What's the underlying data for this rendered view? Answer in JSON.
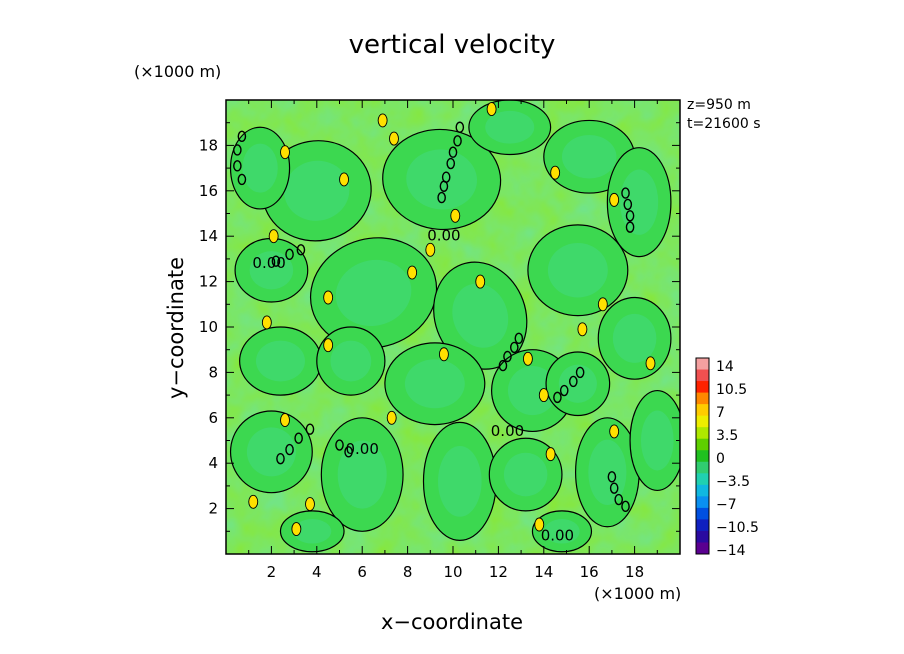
{
  "chart_data": {
    "type": "heatmap",
    "title": "vertical velocity",
    "xlabel": "x−coordinate",
    "ylabel": "y−coordinate",
    "x_unit": "(×1000 m)",
    "y_unit": "(×1000 m)",
    "annotations": [
      "z=950 m",
      "t=21600 s"
    ],
    "xlim": [
      0,
      20
    ],
    "ylim": [
      0,
      20
    ],
    "x_ticks": [
      2,
      4,
      6,
      8,
      10,
      12,
      14,
      16,
      18
    ],
    "y_ticks": [
      2,
      4,
      6,
      8,
      10,
      12,
      14,
      16,
      18
    ],
    "contour_label": "0.00",
    "contour_levels": [
      0,
      3.5
    ],
    "colorbar": {
      "ticks": [
        "14",
        "10.5",
        "7",
        "3.5",
        "0",
        "−3.5",
        "−7",
        "−10.5",
        "−14"
      ],
      "colors": [
        "#f4a0a0",
        "#f05050",
        "#ff2200",
        "#ff8800",
        "#ffcc00",
        "#eeee00",
        "#aee800",
        "#5ed000",
        "#20c020",
        "#30cc70",
        "#20d0b0",
        "#10b8e0",
        "#0a90f0",
        "#0050e0",
        "#1020c0",
        "#2a0aa0",
        "#5a0090"
      ]
    },
    "background_color": "#3cd850",
    "updraft_color": "#8ae830",
    "peak_color": "#ffe000",
    "cells": [
      {
        "x": 4,
        "y": 16,
        "rx": 2.4,
        "ry": 2.2,
        "a": 10
      },
      {
        "x": 9.5,
        "y": 16.5,
        "rx": 2.6,
        "ry": 2.2,
        "a": -5
      },
      {
        "x": 16,
        "y": 17.5,
        "rx": 2,
        "ry": 1.6,
        "a": 0
      },
      {
        "x": 1.5,
        "y": 17,
        "rx": 1.3,
        "ry": 1.8,
        "a": 0
      },
      {
        "x": 2,
        "y": 12.5,
        "rx": 1.6,
        "ry": 1.4,
        "a": 0
      },
      {
        "x": 6.5,
        "y": 11.5,
        "rx": 2.8,
        "ry": 2.4,
        "a": 15
      },
      {
        "x": 11.2,
        "y": 10.5,
        "rx": 2,
        "ry": 2.4,
        "a": 20
      },
      {
        "x": 15.5,
        "y": 12.5,
        "rx": 2.2,
        "ry": 2,
        "a": 0
      },
      {
        "x": 18.2,
        "y": 15.5,
        "rx": 1.4,
        "ry": 2.4,
        "a": 0
      },
      {
        "x": 2.4,
        "y": 8.5,
        "rx": 1.8,
        "ry": 1.5,
        "a": 0
      },
      {
        "x": 5.5,
        "y": 8.5,
        "rx": 1.5,
        "ry": 1.5,
        "a": 0
      },
      {
        "x": 9.2,
        "y": 7.5,
        "rx": 2.2,
        "ry": 1.8,
        "a": 0
      },
      {
        "x": 13.5,
        "y": 7.2,
        "rx": 1.8,
        "ry": 1.8,
        "a": 0
      },
      {
        "x": 18,
        "y": 9.5,
        "rx": 1.6,
        "ry": 1.8,
        "a": 0
      },
      {
        "x": 2,
        "y": 4.5,
        "rx": 1.8,
        "ry": 1.8,
        "a": 0
      },
      {
        "x": 6,
        "y": 3.5,
        "rx": 1.8,
        "ry": 2.5,
        "a": 0
      },
      {
        "x": 10.3,
        "y": 3.2,
        "rx": 1.6,
        "ry": 2.6,
        "a": 0
      },
      {
        "x": 13.2,
        "y": 3.5,
        "rx": 1.6,
        "ry": 1.6,
        "a": 0
      },
      {
        "x": 16.8,
        "y": 3.6,
        "rx": 1.4,
        "ry": 2.4,
        "a": 0
      },
      {
        "x": 15.5,
        "y": 7.5,
        "rx": 1.4,
        "ry": 1.4,
        "a": 0
      },
      {
        "x": 19,
        "y": 5,
        "rx": 1.2,
        "ry": 2.2,
        "a": 0
      },
      {
        "x": 12.5,
        "y": 18.8,
        "rx": 1.8,
        "ry": 1.2,
        "a": 0
      },
      {
        "x": 3.8,
        "y": 1,
        "rx": 1.4,
        "ry": 0.9,
        "a": 0
      },
      {
        "x": 14.8,
        "y": 1,
        "rx": 1.3,
        "ry": 0.9,
        "a": 0
      }
    ],
    "peaks": [
      [
        1.2,
        2.3
      ],
      [
        3.1,
        1.1
      ],
      [
        7.3,
        6.0
      ],
      [
        9.6,
        8.8
      ],
      [
        4.5,
        9.2
      ],
      [
        4.5,
        11.3
      ],
      [
        2.6,
        17.7
      ],
      [
        6.9,
        19.1
      ],
      [
        7.4,
        18.3
      ],
      [
        11.7,
        19.6
      ],
      [
        14.5,
        16.8
      ],
      [
        17.1,
        15.6
      ],
      [
        15.7,
        9.9
      ],
      [
        14.0,
        7.0
      ],
      [
        13.3,
        8.6
      ],
      [
        10.1,
        14.9
      ],
      [
        8.2,
        12.4
      ],
      [
        2.6,
        5.9
      ],
      [
        3.7,
        2.2
      ],
      [
        14.3,
        4.4
      ],
      [
        13.8,
        1.3
      ],
      [
        17.1,
        5.4
      ],
      [
        1.8,
        10.2
      ],
      [
        18.7,
        8.4
      ],
      [
        11.2,
        12.0
      ],
      [
        9.0,
        13.4
      ],
      [
        5.2,
        16.5
      ],
      [
        2.1,
        14.0
      ],
      [
        16.6,
        11.0
      ]
    ],
    "contour_label_positions": [
      [
        9.6,
        13.8
      ],
      [
        1.9,
        12.6
      ],
      [
        6.0,
        4.4
      ],
      [
        12.4,
        5.2
      ],
      [
        14.6,
        0.6
      ]
    ],
    "dash_chains": [
      [
        [
          10.3,
          18.8
        ],
        [
          10.2,
          18.2
        ],
        [
          10.0,
          17.7
        ],
        [
          9.9,
          17.2
        ],
        [
          9.7,
          16.6
        ],
        [
          9.6,
          16.2
        ],
        [
          9.5,
          15.7
        ]
      ],
      [
        [
          2.2,
          12.9
        ],
        [
          2.8,
          13.2
        ],
        [
          3.3,
          13.4
        ]
      ],
      [
        [
          0.7,
          16.5
        ],
        [
          0.5,
          17.1
        ],
        [
          0.5,
          17.8
        ],
        [
          0.7,
          18.4
        ]
      ],
      [
        [
          12.9,
          9.5
        ],
        [
          12.7,
          9.1
        ],
        [
          12.4,
          8.7
        ],
        [
          12.2,
          8.3
        ]
      ],
      [
        [
          2.4,
          4.2
        ],
        [
          2.8,
          4.6
        ],
        [
          3.2,
          5.1
        ],
        [
          3.7,
          5.5
        ]
      ],
      [
        [
          5.0,
          4.8
        ],
        [
          5.4,
          4.5
        ]
      ],
      [
        [
          14.6,
          6.9
        ],
        [
          14.9,
          7.2
        ],
        [
          15.3,
          7.6
        ],
        [
          15.6,
          8.0
        ]
      ],
      [
        [
          17.8,
          14.4
        ],
        [
          17.8,
          14.9
        ],
        [
          17.7,
          15.4
        ],
        [
          17.6,
          15.9
        ]
      ],
      [
        [
          17.0,
          3.4
        ],
        [
          17.1,
          2.9
        ],
        [
          17.3,
          2.4
        ],
        [
          17.6,
          2.1
        ]
      ]
    ]
  }
}
